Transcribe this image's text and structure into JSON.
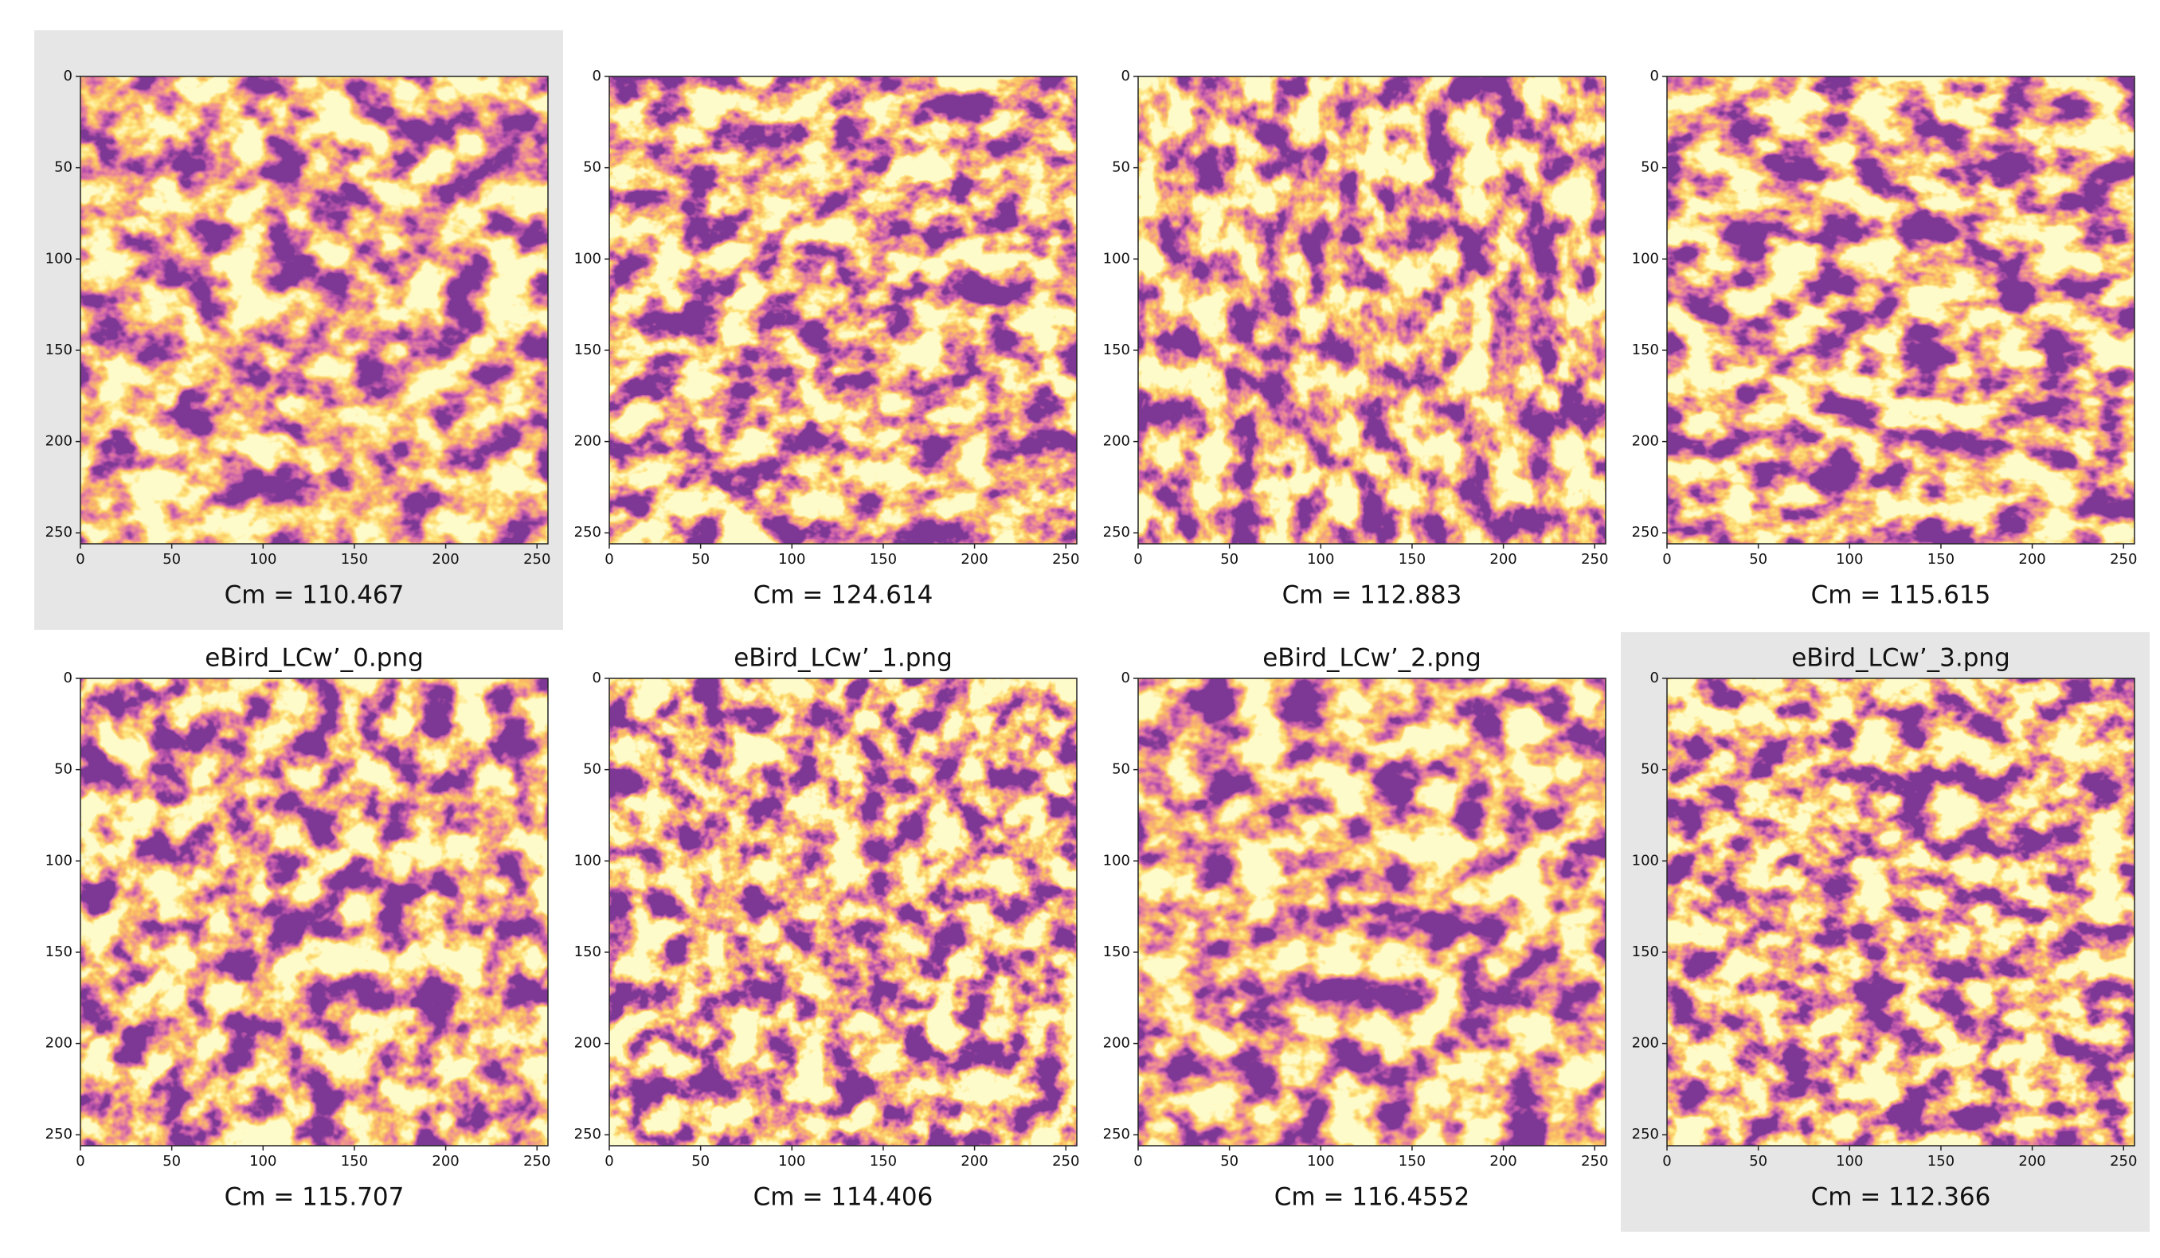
{
  "panels": [
    {
      "caption": "Cm = 110.467",
      "highlight": true
    },
    {
      "caption": "Cm = 124.614",
      "highlight": false
    },
    {
      "caption": "Cm = 112.883",
      "highlight": false
    },
    {
      "caption": "Cm = 115.615",
      "highlight": false
    },
    {
      "title": "eBird_LCw’_0.png",
      "caption": "Cm = 115.707",
      "highlight": false
    },
    {
      "title": "eBird_LCw’_1.png",
      "caption": "Cm = 114.406",
      "highlight": false
    },
    {
      "title": "eBird_LCw’_2.png",
      "caption": "Cm = 116.4552",
      "highlight": false
    },
    {
      "title": "eBird_LCw’_3.png",
      "caption": "Cm = 112.366",
      "highlight": true
    }
  ],
  "xlim": [
    0,
    256
  ],
  "ylim": [
    0,
    256
  ],
  "xticks": [
    0,
    50,
    100,
    150,
    200,
    250
  ],
  "yticks": [
    0,
    50,
    100,
    150,
    200,
    250
  ]
}
